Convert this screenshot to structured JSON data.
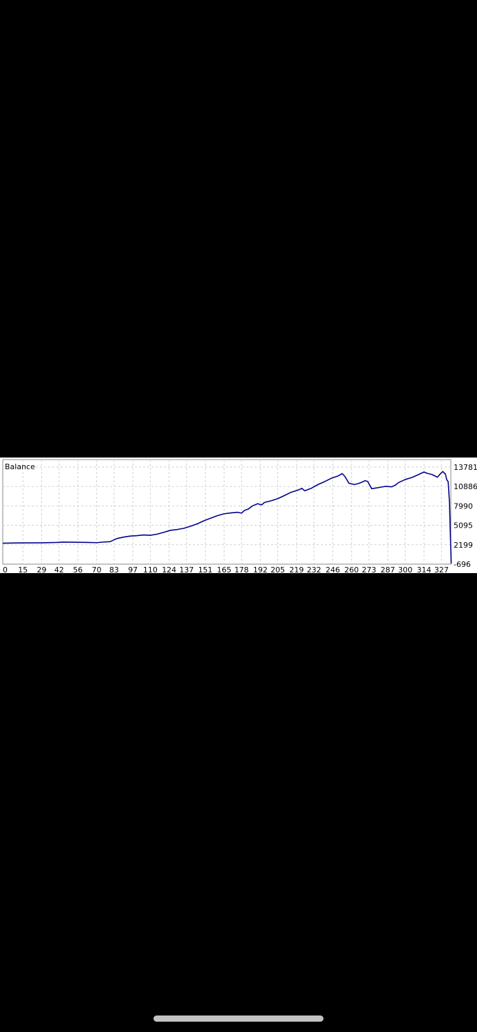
{
  "chart_data": {
    "type": "line",
    "title": "Balance",
    "xlabel": "",
    "ylabel": "",
    "x_ticks": [
      "0",
      "15",
      "29",
      "42",
      "56",
      "70",
      "83",
      "97",
      "110",
      "124",
      "137",
      "151",
      "165",
      "178",
      "192",
      "205",
      "219",
      "232",
      "246",
      "260",
      "273",
      "287",
      "300",
      "314",
      "327"
    ],
    "y_ticks": [
      "13781",
      "10886",
      "7990",
      "5095",
      "2199",
      "-696"
    ],
    "xlim": [
      0,
      334
    ],
    "ylim": [
      -696,
      14900
    ],
    "grid": true,
    "series": [
      {
        "color": "#00008b",
        "x": [
          0,
          10,
          20,
          30,
          40,
          45,
          50,
          60,
          70,
          75,
          80,
          85,
          90,
          95,
          100,
          105,
          110,
          115,
          120,
          125,
          130,
          135,
          140,
          145,
          150,
          155,
          160,
          165,
          170,
          175,
          178,
          180,
          183,
          186,
          190,
          193,
          195,
          200,
          205,
          210,
          215,
          220,
          223,
          225,
          230,
          235,
          240,
          245,
          250,
          253,
          255,
          258,
          262,
          265,
          268,
          270,
          272,
          275,
          280,
          285,
          290,
          293,
          295,
          300,
          305,
          310,
          314,
          316,
          320,
          324,
          326,
          328,
          330,
          331,
          332,
          333,
          333.5,
          334,
          334.3
        ],
        "y": [
          2430,
          2470,
          2480,
          2490,
          2540,
          2590,
          2580,
          2560,
          2510,
          2600,
          2660,
          3120,
          3340,
          3490,
          3560,
          3660,
          3610,
          3780,
          4050,
          4350,
          4470,
          4650,
          4960,
          5320,
          5780,
          6160,
          6540,
          6820,
          6940,
          7040,
          6920,
          7300,
          7520,
          7980,
          8320,
          8140,
          8500,
          8760,
          9080,
          9540,
          10030,
          10350,
          10600,
          10250,
          10620,
          11180,
          11620,
          12120,
          12460,
          12820,
          12400,
          11380,
          11180,
          11320,
          11550,
          11760,
          11640,
          10560,
          10720,
          10900,
          10840,
          11140,
          11470,
          11930,
          12230,
          12670,
          13050,
          12870,
          12670,
          12270,
          12740,
          13120,
          12720,
          11870,
          11600,
          8500,
          4700,
          1300,
          -600
        ]
      }
    ]
  }
}
